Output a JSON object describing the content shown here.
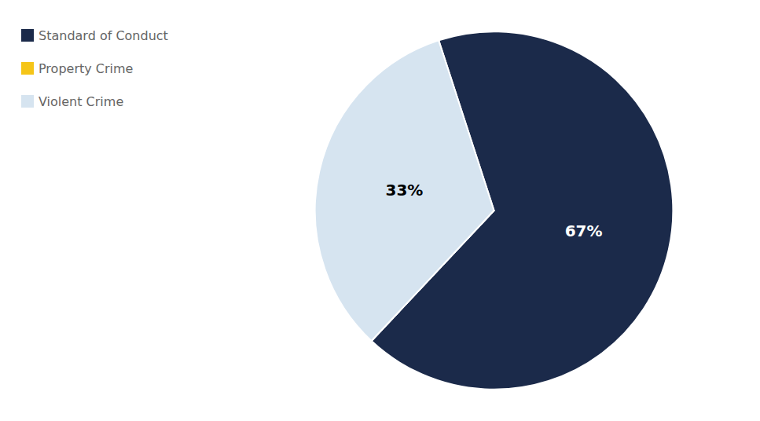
{
  "chart_data": {
    "type": "pie",
    "categories": [
      "Standard of Conduct",
      "Property Crime",
      "Violent Crime"
    ],
    "values": [
      67,
      0,
      33
    ],
    "value_labels": [
      "67%",
      null,
      "33%"
    ],
    "colors": [
      "#1B2A4A",
      "#F5C518",
      "#D6E4F0"
    ],
    "data_labels": true,
    "legend": "upper left"
  }
}
